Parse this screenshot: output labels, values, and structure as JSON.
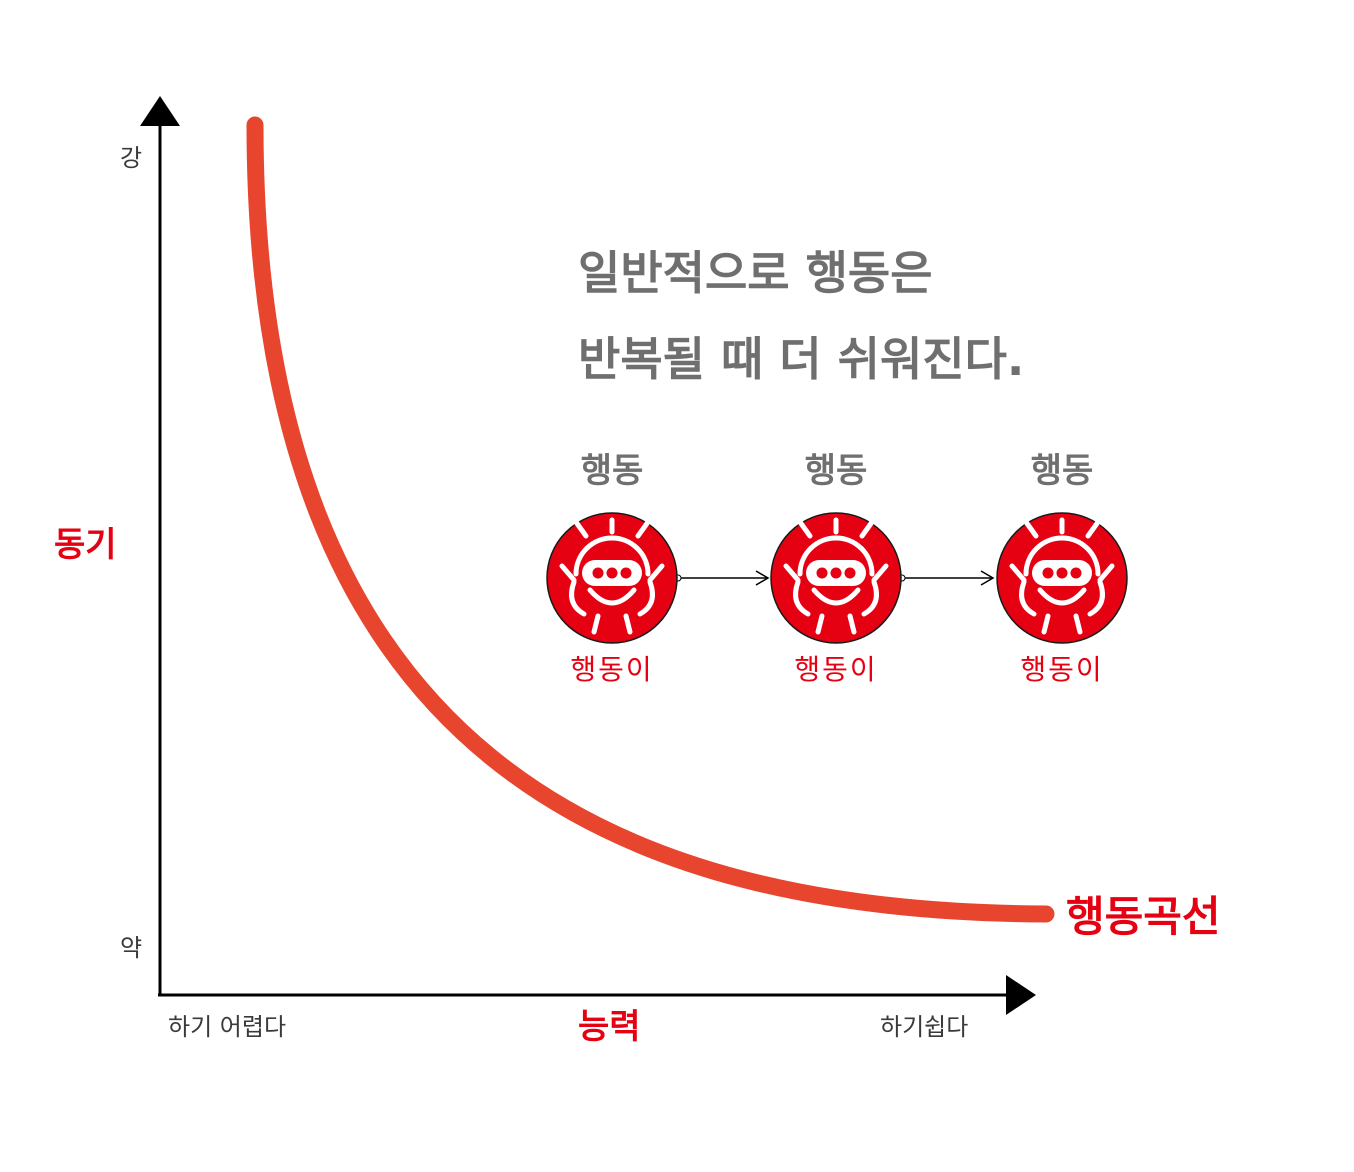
{
  "y_axis": {
    "label": "동기",
    "high_label": "강",
    "low_label": "약"
  },
  "x_axis": {
    "label": "능력",
    "left_label": "하기 어렵다",
    "right_label": "하기쉽다"
  },
  "curve_label": "행동곡선",
  "headline": {
    "line1": "일반적으로 행동은",
    "line2": "반복될 때 더 쉬워진다."
  },
  "steps": [
    {
      "title": "행동",
      "character_name": "행동이"
    },
    {
      "title": "행동",
      "character_name": "행동이"
    },
    {
      "title": "행동",
      "character_name": "행동이"
    }
  ],
  "colors": {
    "accent_red": "#e50012",
    "curve_orange_red": "#e8452f",
    "axis_black": "#000000",
    "headline_gray": "#6f6f6f",
    "tick_dark": "#3a3a3a"
  }
}
